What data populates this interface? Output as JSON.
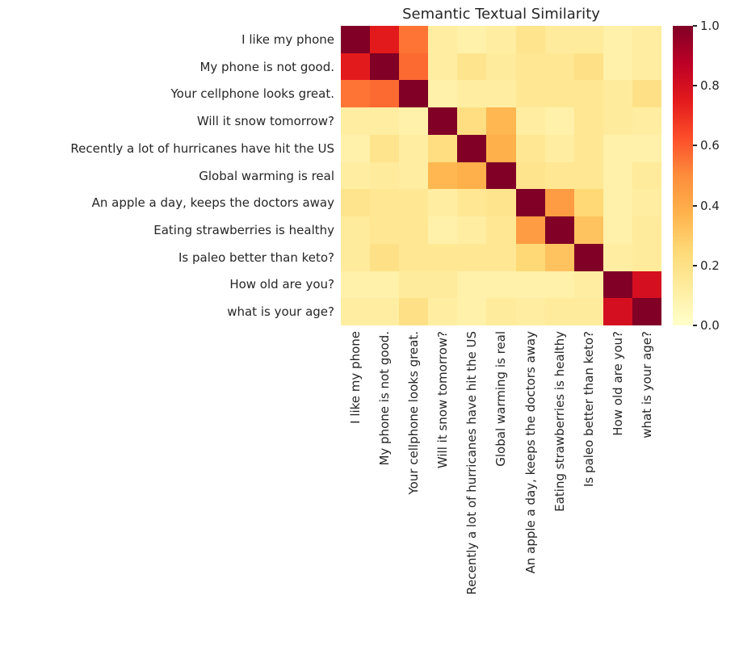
{
  "chart_data": {
    "type": "heatmap",
    "title": "Semantic Textual Similarity",
    "labels": [
      "I like my phone",
      "My phone is not good.",
      "Your cellphone looks great.",
      "Will it snow tomorrow?",
      "Recently a lot of hurricanes have hit the US",
      "Global warming is real",
      "An apple a day, keeps the doctors away",
      "Eating strawberries is healthy",
      "Is paleo better than keto?",
      "How old are you?",
      "what is your age?"
    ],
    "matrix": [
      [
        1.0,
        0.75,
        0.55,
        0.12,
        0.1,
        0.12,
        0.18,
        0.14,
        0.14,
        0.1,
        0.12
      ],
      [
        0.75,
        1.0,
        0.57,
        0.12,
        0.18,
        0.14,
        0.16,
        0.16,
        0.2,
        0.1,
        0.12
      ],
      [
        0.55,
        0.57,
        1.0,
        0.1,
        0.12,
        0.12,
        0.16,
        0.16,
        0.16,
        0.14,
        0.2
      ],
      [
        0.12,
        0.12,
        0.1,
        1.0,
        0.22,
        0.36,
        0.12,
        0.1,
        0.16,
        0.14,
        0.12
      ],
      [
        0.1,
        0.18,
        0.12,
        0.22,
        1.0,
        0.38,
        0.16,
        0.12,
        0.16,
        0.1,
        0.1
      ],
      [
        0.12,
        0.14,
        0.12,
        0.36,
        0.38,
        1.0,
        0.18,
        0.16,
        0.16,
        0.1,
        0.14
      ],
      [
        0.18,
        0.16,
        0.16,
        0.12,
        0.16,
        0.18,
        1.0,
        0.45,
        0.25,
        0.1,
        0.12
      ],
      [
        0.14,
        0.16,
        0.16,
        0.1,
        0.12,
        0.16,
        0.45,
        1.0,
        0.32,
        0.1,
        0.14
      ],
      [
        0.14,
        0.2,
        0.16,
        0.16,
        0.16,
        0.16,
        0.25,
        0.32,
        1.0,
        0.12,
        0.14
      ],
      [
        0.1,
        0.1,
        0.14,
        0.14,
        0.1,
        0.1,
        0.1,
        0.1,
        0.12,
        1.0,
        0.8
      ],
      [
        0.12,
        0.12,
        0.2,
        0.12,
        0.1,
        0.14,
        0.12,
        0.14,
        0.14,
        0.8,
        1.0
      ]
    ],
    "value_range": [
      0.0,
      1.0
    ],
    "colormap": {
      "name": "YlOrRd",
      "stops": [
        "#ffffcc",
        "#ffeda0",
        "#fed976",
        "#feb24c",
        "#fd8d3c",
        "#fc4e2a",
        "#e31a1c",
        "#bd0026",
        "#800026"
      ]
    },
    "colorbar_ticks": [
      "0.0",
      "0.2",
      "0.4",
      "0.6",
      "0.8",
      "1.0"
    ],
    "legend_position": "right",
    "grid": false,
    "text_color": "#262626",
    "background": "#ffffff"
  }
}
